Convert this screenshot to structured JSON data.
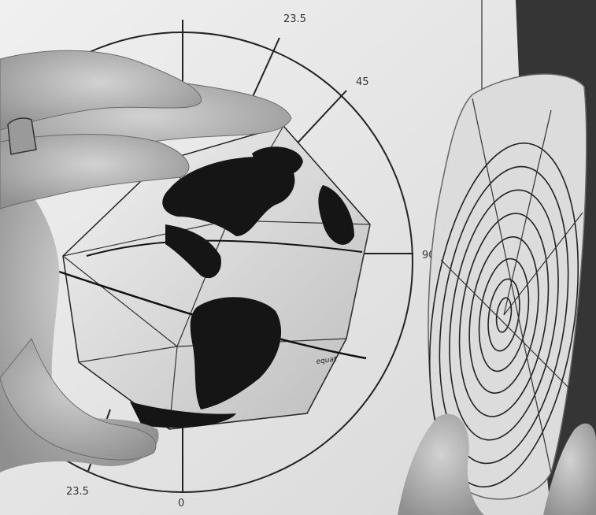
{
  "photo": {
    "kind": "grayscale photograph",
    "dial_labels": {
      "top": "23.5",
      "upper_right": "45",
      "right": "90",
      "lower_left": "23.5",
      "bottom": "0"
    },
    "globe_label": "equat"
  },
  "colors": {
    "paper": "#e9e9e9",
    "ink": "#222222",
    "skin": "#bdbdbd",
    "dark_panel": "#3a3a3a"
  }
}
